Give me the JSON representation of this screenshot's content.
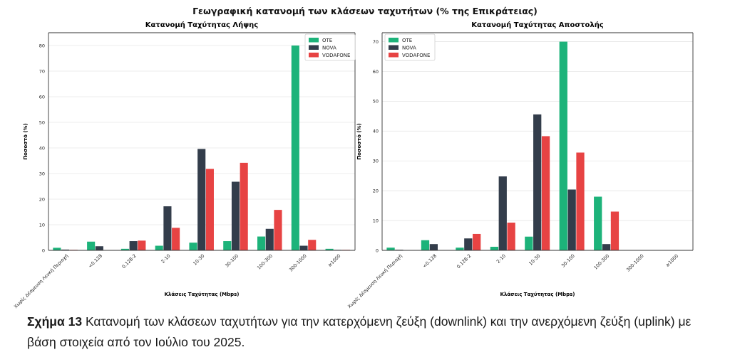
{
  "suptitle": "Γεωγραφική κατανομή των κλάσεων ταχυτήτων (% της Επικράτειας)",
  "caption": {
    "label": "Σχήμα 13",
    "text": "Κατανομή των κλάσεων ταχυτήτων για την κατερχόμενη ζεύξη (downlink) και την ανερχόμενη ζεύξη (uplink) με βάση στοιχεία από τον Ιούλιο του 2025."
  },
  "colors": {
    "OTE": "#1db37a",
    "NOVA": "#333d4b",
    "VODAFONE": "#e74343"
  },
  "chart_data": [
    {
      "type": "bar",
      "title": "Κατανομή Ταχύτητας Λήψης",
      "xlabel": "Κλάσεις Ταχύτητας (Mbps)",
      "ylabel": "Ποσοστό (%)",
      "ylim": [
        0,
        85
      ],
      "yticks": [
        0,
        10,
        20,
        30,
        40,
        50,
        60,
        70,
        80
      ],
      "grid": true,
      "legend": "top-right",
      "categories": [
        "Χωρίς Δέσμευση Λευκή Περιοχή",
        "<0.128",
        "0.128-2",
        "2-10",
        "10-30",
        "30-100",
        "100-300",
        "300-1000",
        "≥1000"
      ],
      "series": [
        {
          "name": "OTE",
          "values": [
            1.0,
            3.4,
            0.6,
            1.8,
            3.0,
            3.6,
            5.4,
            80.0,
            0.6
          ]
        },
        {
          "name": "NOVA",
          "values": [
            0.3,
            1.6,
            3.6,
            17.2,
            39.6,
            26.8,
            8.4,
            1.8,
            0.2
          ]
        },
        {
          "name": "VODAFONE",
          "values": [
            0.2,
            0.1,
            3.8,
            8.8,
            31.8,
            34.2,
            15.8,
            4.1,
            0.2
          ]
        }
      ]
    },
    {
      "type": "bar",
      "title": "Κατανομή Ταχύτητας Αποστολής",
      "xlabel": "Κλάσεις Ταχύτητας (Mbps)",
      "ylabel": "Ποσοστό (%)",
      "ylim": [
        0,
        73
      ],
      "yticks": [
        0,
        10,
        20,
        30,
        40,
        50,
        60,
        70
      ],
      "grid": true,
      "legend": "top-left",
      "categories": [
        "Χωρίς Δέσμευση Λευκή Περιοχή",
        "<0.128",
        "0.128-2",
        "2-10",
        "10-30",
        "30-100",
        "100-300",
        "300-1000",
        "≥1000"
      ],
      "series": [
        {
          "name": "OTE",
          "values": [
            0.9,
            3.4,
            0.9,
            1.2,
            4.6,
            70.0,
            18.0,
            0.1,
            0.05
          ]
        },
        {
          "name": "NOVA",
          "values": [
            0.2,
            2.1,
            4.0,
            24.8,
            45.6,
            20.4,
            2.1,
            0.05,
            0.0
          ]
        },
        {
          "name": "VODAFONE",
          "values": [
            0.1,
            0.05,
            5.5,
            9.3,
            38.3,
            32.8,
            13.0,
            0.05,
            0.0
          ]
        }
      ]
    }
  ]
}
